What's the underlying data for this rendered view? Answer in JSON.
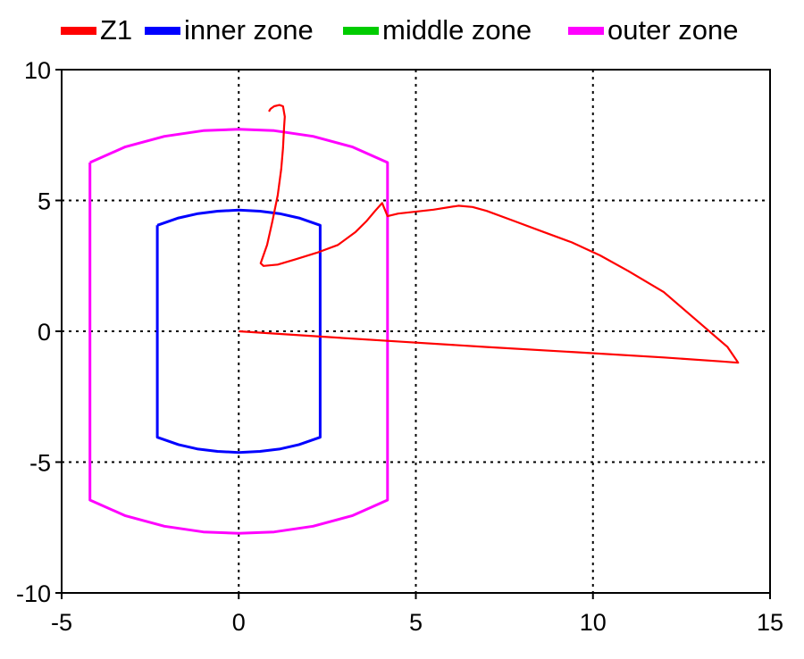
{
  "chart_data": {
    "type": "line",
    "title": "",
    "xlabel": "",
    "ylabel": "",
    "xlim": [
      -5,
      15
    ],
    "ylim": [
      -10,
      10
    ],
    "x_ticks": [
      -5,
      0,
      5,
      10,
      15
    ],
    "y_ticks": [
      -10,
      -5,
      0,
      5,
      10
    ],
    "x_tick_labels": [
      "-5",
      "0",
      "5",
      "10",
      "15"
    ],
    "y_tick_labels": [
      "-10",
      "-5",
      "0",
      "5",
      "10"
    ],
    "grid": true,
    "grid_style": "dotted",
    "legend_position": "top",
    "series": [
      {
        "name": "Z1",
        "color": "#ff0000",
        "x": [
          0.0,
          2.3,
          4.6,
          7.0,
          9.5,
          12.0,
          13.6,
          14.1,
          14.05,
          13.8,
          13.2,
          12.6,
          12.0,
          11.5,
          11.0,
          10.2,
          9.4,
          8.6,
          7.8,
          7.0,
          6.6,
          6.2,
          5.5,
          4.5,
          4.2,
          4.05,
          3.85,
          3.6,
          3.3,
          2.8,
          2.2,
          1.6,
          1.1,
          0.7,
          0.62,
          0.8,
          0.95,
          1.1,
          1.2,
          1.25,
          1.28,
          1.3,
          1.25,
          1.15,
          1.0,
          0.9,
          0.85
        ],
        "y": [
          0.0,
          -0.2,
          -0.4,
          -0.6,
          -0.8,
          -1.0,
          -1.15,
          -1.2,
          -1.1,
          -0.6,
          0.1,
          0.8,
          1.5,
          1.9,
          2.3,
          2.9,
          3.4,
          3.8,
          4.2,
          4.6,
          4.75,
          4.8,
          4.65,
          4.5,
          4.4,
          4.9,
          4.6,
          4.2,
          3.8,
          3.3,
          3.0,
          2.75,
          2.55,
          2.5,
          2.6,
          3.3,
          4.2,
          5.2,
          6.2,
          7.0,
          7.8,
          8.2,
          8.6,
          8.65,
          8.6,
          8.5,
          8.4
        ]
      },
      {
        "name": "inner zone",
        "color": "#0000ff",
        "x": [
          -2.3,
          -1.7,
          -1.15,
          -0.6,
          0.0,
          0.6,
          1.15,
          1.7,
          2.3,
          2.3,
          1.7,
          1.15,
          0.6,
          0.0,
          -0.6,
          -1.15,
          -1.7,
          -2.3,
          -2.3
        ],
        "y": [
          4.05,
          4.33,
          4.5,
          4.59,
          4.63,
          4.59,
          4.5,
          4.33,
          4.05,
          -4.05,
          -4.33,
          -4.5,
          -4.59,
          -4.63,
          -4.59,
          -4.5,
          -4.33,
          -4.05,
          4.05
        ]
      },
      {
        "name": "middle zone",
        "color": "#00cc00",
        "x": [],
        "y": []
      },
      {
        "name": "outer zone",
        "color": "#ff00ff",
        "x": [
          -4.2,
          -3.2,
          -2.1,
          -1.0,
          0.0,
          1.0,
          2.1,
          3.2,
          4.2,
          4.2,
          3.2,
          2.1,
          1.0,
          0.0,
          -1.0,
          -2.1,
          -3.2,
          -4.2,
          -4.2
        ],
        "y": [
          6.45,
          7.05,
          7.45,
          7.67,
          7.72,
          7.67,
          7.45,
          7.05,
          6.45,
          -6.45,
          -7.05,
          -7.45,
          -7.67,
          -7.72,
          -7.67,
          -7.45,
          -7.05,
          -6.45,
          6.45
        ]
      }
    ]
  }
}
